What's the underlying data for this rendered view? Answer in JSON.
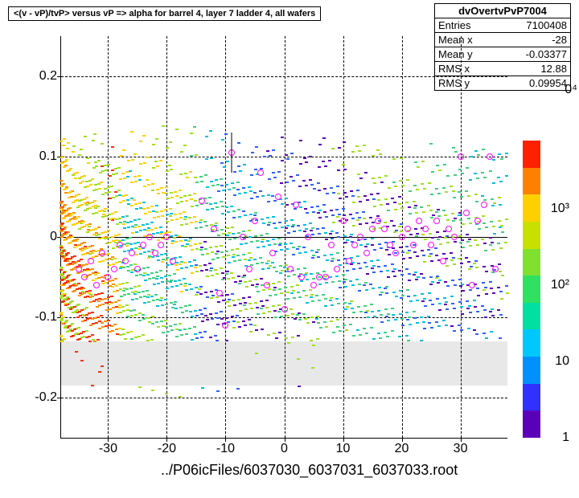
{
  "title": "<(v - vP)/tvP> versus   vP => alpha for barrel 4, layer 7 ladder 4, all wafers",
  "stats": {
    "header": "dvOvertvPvP7004",
    "entries_label": "Entries",
    "entries": "7100408",
    "meanx_label": "Mean x",
    "meanx": "-28",
    "meany_label": "Mean y",
    "meany": "-0.03377",
    "rmsx_label": "RMS x",
    "rmsx": "12.88",
    "rmsy_label": "RMS y",
    "rmsy": "0.09954"
  },
  "axes": {
    "xlim": [
      -38,
      38
    ],
    "ylim": [
      -0.25,
      0.25
    ],
    "xticks": [
      -30,
      -20,
      -10,
      0,
      10,
      20,
      30
    ],
    "yticks": [
      -0.2,
      -0.1,
      0,
      0.1,
      0.2
    ]
  },
  "gray_band": {
    "ymin": -0.185,
    "ymax": -0.13
  },
  "footer": "../P06icFiles/6037030_6037031_6037033.root",
  "colorbar": {
    "labels": [
      "1",
      "10",
      "10²",
      "10³"
    ],
    "label_extra": "0⁴",
    "colors": [
      "#5b00b9",
      "#3030ff",
      "#0090ff",
      "#00c8ff",
      "#00e0a0",
      "#30e060",
      "#80e030",
      "#c8e000",
      "#ffd000",
      "#ff8000",
      "#ff2000"
    ]
  },
  "speck_colors": [
    "#ff3000",
    "#ff9000",
    "#ffd000",
    "#a0e020",
    "#40d080",
    "#00c0e0",
    "#3060ff",
    "#5b00b9"
  ],
  "markers_x": [
    -35,
    -34,
    -33,
    -32,
    -31,
    -30,
    -29,
    -28,
    -27,
    -26,
    -25,
    -24,
    -23,
    -22,
    -21,
    -20,
    -19,
    -14,
    -12,
    -11,
    -10,
    -9,
    -7,
    -6,
    -5,
    -4,
    -3,
    -2,
    -1,
    0,
    1,
    2,
    3,
    4,
    5,
    6,
    7,
    8,
    9,
    10,
    11,
    12,
    13,
    14,
    15,
    16,
    17,
    18,
    19,
    20,
    21,
    22,
    23,
    24,
    25,
    26,
    27,
    28,
    29,
    30,
    31,
    32,
    33,
    34,
    35,
    36
  ],
  "markers_y": [
    -0.04,
    -0.05,
    -0.03,
    -0.06,
    -0.02,
    -0.05,
    -0.04,
    -0.01,
    -0.03,
    -0.02,
    -0.04,
    -0.01,
    0.0,
    -0.02,
    -0.01,
    0.0,
    -0.03,
    0.045,
    0.01,
    -0.07,
    -0.11,
    0.105,
    0.0,
    -0.04,
    0.02,
    0.08,
    -0.06,
    -0.02,
    0.05,
    -0.09,
    -0.04,
    0.04,
    -0.05,
    0.0,
    -0.06,
    -0.05,
    -0.05,
    -0.01,
    -0.04,
    0.02,
    -0.03,
    -0.01,
    0.0,
    -0.02,
    0.01,
    0.02,
    0.01,
    -0.01,
    -0.02,
    0.0,
    0.01,
    -0.01,
    0.02,
    0.01,
    -0.01,
    0.02,
    -0.03,
    0.01,
    0.0,
    0.1,
    0.03,
    -0.06,
    0.02,
    0.04,
    0.1,
    -0.04
  ]
}
